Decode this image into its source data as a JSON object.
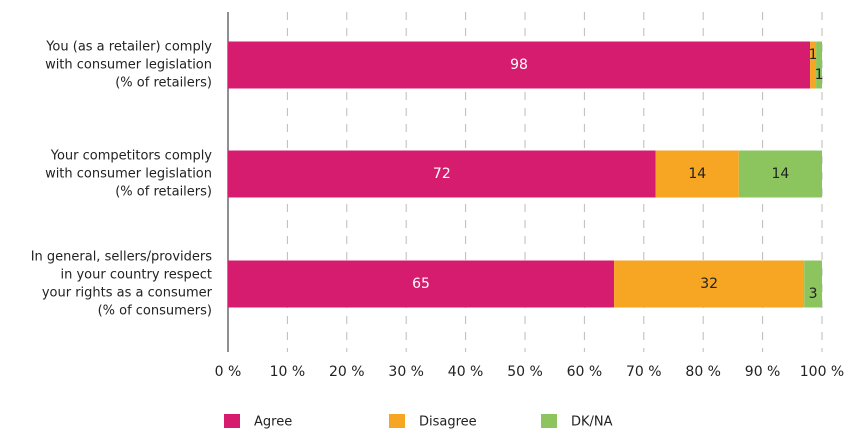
{
  "chart_data": {
    "type": "stacked-barh",
    "categories": [
      [
        "You (as a retailer) comply",
        "with consumer legislation",
        "(% of retailers)"
      ],
      [
        "Your competitors comply",
        "with consumer legislation",
        "(% of retailers)"
      ],
      [
        "In general, sellers/providers",
        "in your country respect",
        "your rights as a consumer",
        "(% of consumers)"
      ]
    ],
    "series": [
      {
        "name": "Agree",
        "color": "#d51c6e",
        "values": [
          98,
          72,
          65
        ]
      },
      {
        "name": "Disagree",
        "color": "#f6a623",
        "values": [
          1,
          14,
          32
        ]
      },
      {
        "name": "DK/NA",
        "color": "#8cc55e",
        "values": [
          1,
          14,
          3
        ]
      }
    ],
    "xlim": [
      0,
      100
    ],
    "xticks": [
      {
        "value": 0,
        "label": "0 %"
      },
      {
        "value": 10,
        "label": "10 %"
      },
      {
        "value": 20,
        "label": "20 %"
      },
      {
        "value": 30,
        "label": "30 %"
      },
      {
        "value": 40,
        "label": "40 %"
      },
      {
        "value": 50,
        "label": "50 %"
      },
      {
        "value": 60,
        "label": "60 %"
      },
      {
        "value": 70,
        "label": "70 %"
      },
      {
        "value": 80,
        "label": "80 %"
      },
      {
        "value": 90,
        "label": "90 %"
      },
      {
        "value": 100,
        "label": "100 %"
      }
    ],
    "grid": true,
    "legend": "bottom"
  }
}
